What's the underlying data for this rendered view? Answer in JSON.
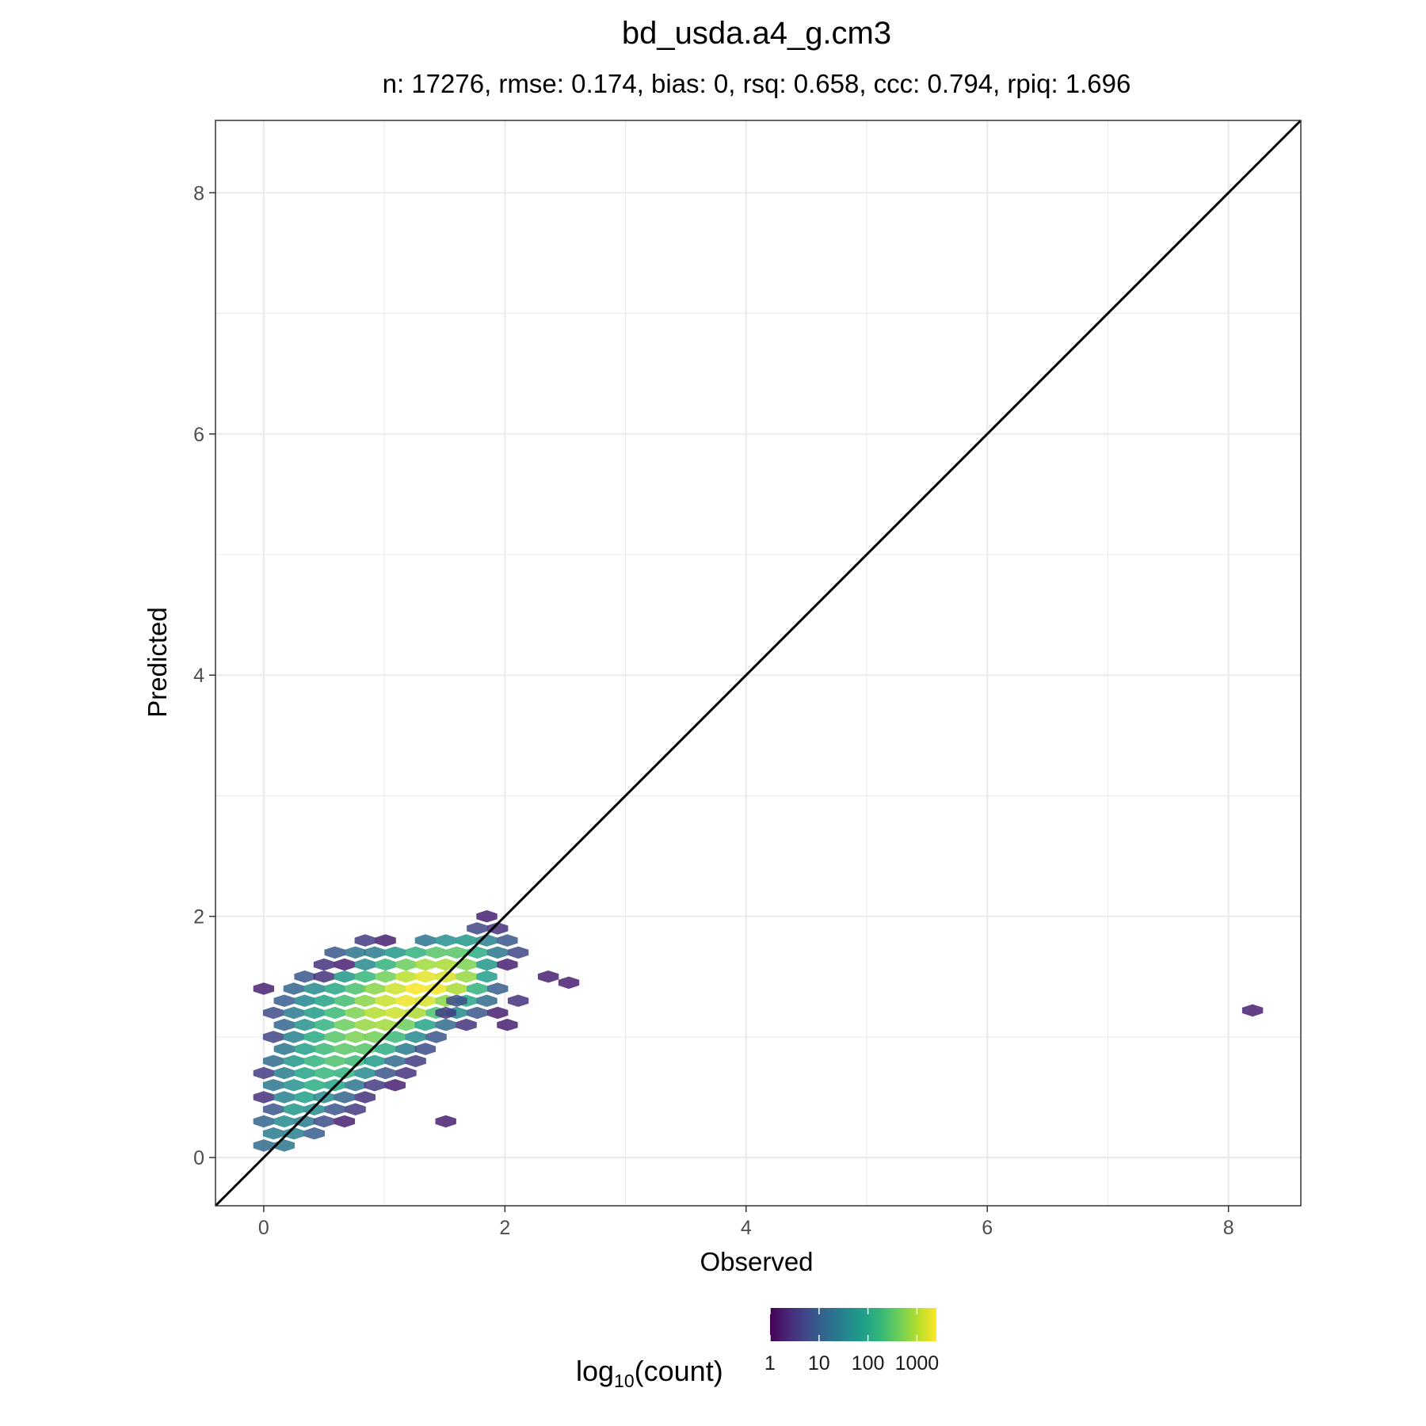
{
  "chart_data": {
    "type": "heatmap",
    "subtype": "hexbin",
    "title": "bd_usda.a4_g.cm3",
    "subtitle": "n: 17276, rmse: 0.174, bias: 0, rsq: 0.658, ccc: 0.794, rpiq: 1.696",
    "xlabel": "Observed",
    "ylabel": "Predicted",
    "xlim": [
      -0.4,
      8.6
    ],
    "ylim": [
      -0.4,
      8.6
    ],
    "x_ticks": [
      0,
      2,
      4,
      6,
      8
    ],
    "y_ticks": [
      0,
      2,
      4,
      6,
      8
    ],
    "grid": true,
    "reference_line": {
      "slope": 1,
      "intercept": 0,
      "color": "#000000"
    },
    "legend": {
      "title_base": "log",
      "title_sub": "10",
      "title_rest": "(count)",
      "placement": "bottom",
      "tick_values": [
        1,
        10,
        100,
        1000
      ],
      "tick_labels": [
        "1",
        "10",
        "100",
        "1000"
      ],
      "max_count": 2500,
      "palette": [
        "#440154",
        "#482878",
        "#3e4a89",
        "#31688e",
        "#26828e",
        "#1f9e89",
        "#35b779",
        "#6ece58",
        "#b5de2b",
        "#fde725"
      ]
    },
    "bins": [
      {
        "x": 0.0,
        "y": 0.1,
        "count": 15
      },
      {
        "x": 0.17,
        "y": 0.1,
        "count": 20
      },
      {
        "x": 0.08,
        "y": 0.2,
        "count": 25
      },
      {
        "x": 0.25,
        "y": 0.2,
        "count": 30
      },
      {
        "x": 0.42,
        "y": 0.2,
        "count": 10
      },
      {
        "x": 0.0,
        "y": 0.3,
        "count": 12
      },
      {
        "x": 0.17,
        "y": 0.3,
        "count": 40
      },
      {
        "x": 0.34,
        "y": 0.3,
        "count": 25
      },
      {
        "x": 0.5,
        "y": 0.3,
        "count": 6
      },
      {
        "x": 0.67,
        "y": 0.3,
        "count": 2
      },
      {
        "x": 0.08,
        "y": 0.4,
        "count": 8
      },
      {
        "x": 0.25,
        "y": 0.4,
        "count": 60
      },
      {
        "x": 0.42,
        "y": 0.4,
        "count": 40
      },
      {
        "x": 0.59,
        "y": 0.4,
        "count": 8
      },
      {
        "x": 0.76,
        "y": 0.4,
        "count": 4
      },
      {
        "x": 0.0,
        "y": 0.5,
        "count": 3
      },
      {
        "x": 0.17,
        "y": 0.5,
        "count": 30
      },
      {
        "x": 0.34,
        "y": 0.5,
        "count": 80
      },
      {
        "x": 0.5,
        "y": 0.5,
        "count": 40
      },
      {
        "x": 0.67,
        "y": 0.5,
        "count": 12
      },
      {
        "x": 0.84,
        "y": 0.5,
        "count": 3
      },
      {
        "x": 0.08,
        "y": 0.6,
        "count": 20
      },
      {
        "x": 0.25,
        "y": 0.6,
        "count": 50
      },
      {
        "x": 0.42,
        "y": 0.6,
        "count": 120
      },
      {
        "x": 0.59,
        "y": 0.6,
        "count": 90
      },
      {
        "x": 0.76,
        "y": 0.6,
        "count": 20
      },
      {
        "x": 0.92,
        "y": 0.6,
        "count": 4
      },
      {
        "x": 1.09,
        "y": 0.6,
        "count": 2
      },
      {
        "x": 0.0,
        "y": 0.7,
        "count": 4
      },
      {
        "x": 0.17,
        "y": 0.7,
        "count": 25
      },
      {
        "x": 0.34,
        "y": 0.7,
        "count": 90
      },
      {
        "x": 0.5,
        "y": 0.7,
        "count": 180
      },
      {
        "x": 0.67,
        "y": 0.7,
        "count": 150
      },
      {
        "x": 0.84,
        "y": 0.7,
        "count": 40
      },
      {
        "x": 1.01,
        "y": 0.7,
        "count": 8
      },
      {
        "x": 1.18,
        "y": 0.7,
        "count": 3
      },
      {
        "x": 0.08,
        "y": 0.8,
        "count": 15
      },
      {
        "x": 0.25,
        "y": 0.8,
        "count": 60
      },
      {
        "x": 0.42,
        "y": 0.8,
        "count": 160
      },
      {
        "x": 0.59,
        "y": 0.8,
        "count": 260
      },
      {
        "x": 0.76,
        "y": 0.8,
        "count": 200
      },
      {
        "x": 0.92,
        "y": 0.8,
        "count": 70
      },
      {
        "x": 1.09,
        "y": 0.8,
        "count": 15
      },
      {
        "x": 1.26,
        "y": 0.8,
        "count": 4
      },
      {
        "x": 0.17,
        "y": 0.9,
        "count": 20
      },
      {
        "x": 0.34,
        "y": 0.9,
        "count": 80
      },
      {
        "x": 0.5,
        "y": 0.9,
        "count": 200
      },
      {
        "x": 0.67,
        "y": 0.9,
        "count": 320
      },
      {
        "x": 0.84,
        "y": 0.9,
        "count": 300
      },
      {
        "x": 1.01,
        "y": 0.9,
        "count": 120
      },
      {
        "x": 1.18,
        "y": 0.9,
        "count": 25
      },
      {
        "x": 1.34,
        "y": 0.9,
        "count": 6
      },
      {
        "x": 0.08,
        "y": 1.0,
        "count": 5
      },
      {
        "x": 0.25,
        "y": 1.0,
        "count": 30
      },
      {
        "x": 0.42,
        "y": 1.0,
        "count": 110
      },
      {
        "x": 0.59,
        "y": 1.0,
        "count": 300
      },
      {
        "x": 0.76,
        "y": 1.0,
        "count": 500
      },
      {
        "x": 0.92,
        "y": 1.0,
        "count": 450
      },
      {
        "x": 1.09,
        "y": 1.0,
        "count": 200
      },
      {
        "x": 1.26,
        "y": 1.0,
        "count": 40
      },
      {
        "x": 1.43,
        "y": 1.0,
        "count": 8
      },
      {
        "x": 0.17,
        "y": 1.1,
        "count": 12
      },
      {
        "x": 0.34,
        "y": 1.1,
        "count": 50
      },
      {
        "x": 0.5,
        "y": 1.1,
        "count": 160
      },
      {
        "x": 0.67,
        "y": 1.1,
        "count": 400
      },
      {
        "x": 0.84,
        "y": 1.1,
        "count": 700
      },
      {
        "x": 1.01,
        "y": 1.1,
        "count": 800
      },
      {
        "x": 1.18,
        "y": 1.1,
        "count": 400
      },
      {
        "x": 1.34,
        "y": 1.1,
        "count": 90
      },
      {
        "x": 1.51,
        "y": 1.1,
        "count": 15
      },
      {
        "x": 1.68,
        "y": 1.1,
        "count": 3
      },
      {
        "x": 0.08,
        "y": 1.2,
        "count": 6
      },
      {
        "x": 0.25,
        "y": 1.2,
        "count": 25
      },
      {
        "x": 0.42,
        "y": 1.2,
        "count": 70
      },
      {
        "x": 0.59,
        "y": 1.2,
        "count": 200
      },
      {
        "x": 0.76,
        "y": 1.2,
        "count": 500
      },
      {
        "x": 0.92,
        "y": 1.2,
        "count": 1000
      },
      {
        "x": 1.09,
        "y": 1.2,
        "count": 1400
      },
      {
        "x": 1.26,
        "y": 1.2,
        "count": 900
      },
      {
        "x": 1.43,
        "y": 1.2,
        "count": 250
      },
      {
        "x": 1.6,
        "y": 1.2,
        "count": 40
      },
      {
        "x": 1.77,
        "y": 1.2,
        "count": 8
      },
      {
        "x": 1.94,
        "y": 1.2,
        "count": 2
      },
      {
        "x": 0.17,
        "y": 1.3,
        "count": 10
      },
      {
        "x": 0.34,
        "y": 1.3,
        "count": 35
      },
      {
        "x": 0.5,
        "y": 1.3,
        "count": 90
      },
      {
        "x": 0.67,
        "y": 1.3,
        "count": 220
      },
      {
        "x": 0.84,
        "y": 1.3,
        "count": 600
      },
      {
        "x": 1.01,
        "y": 1.3,
        "count": 1300
      },
      {
        "x": 1.18,
        "y": 1.3,
        "count": 2000
      },
      {
        "x": 1.34,
        "y": 1.3,
        "count": 1500
      },
      {
        "x": 1.51,
        "y": 1.3,
        "count": 600
      },
      {
        "x": 1.68,
        "y": 1.3,
        "count": 100
      },
      {
        "x": 1.85,
        "y": 1.3,
        "count": 15
      },
      {
        "x": 0.0,
        "y": 1.4,
        "count": 2
      },
      {
        "x": 0.25,
        "y": 1.4,
        "count": 12
      },
      {
        "x": 0.42,
        "y": 1.4,
        "count": 40
      },
      {
        "x": 0.59,
        "y": 1.4,
        "count": 100
      },
      {
        "x": 0.76,
        "y": 1.4,
        "count": 250
      },
      {
        "x": 0.92,
        "y": 1.4,
        "count": 600
      },
      {
        "x": 1.09,
        "y": 1.4,
        "count": 1400
      },
      {
        "x": 1.26,
        "y": 1.4,
        "count": 2300
      },
      {
        "x": 1.43,
        "y": 1.4,
        "count": 2100
      },
      {
        "x": 1.6,
        "y": 1.4,
        "count": 900
      },
      {
        "x": 1.77,
        "y": 1.4,
        "count": 150
      },
      {
        "x": 1.94,
        "y": 1.4,
        "count": 10
      },
      {
        "x": 0.34,
        "y": 1.5,
        "count": 8
      },
      {
        "x": 0.5,
        "y": 1.5,
        "count": 3
      },
      {
        "x": 0.67,
        "y": 1.5,
        "count": 60
      },
      {
        "x": 0.84,
        "y": 1.5,
        "count": 180
      },
      {
        "x": 1.01,
        "y": 1.5,
        "count": 450
      },
      {
        "x": 1.18,
        "y": 1.5,
        "count": 1100
      },
      {
        "x": 1.34,
        "y": 1.5,
        "count": 1800
      },
      {
        "x": 1.51,
        "y": 1.5,
        "count": 1500
      },
      {
        "x": 1.68,
        "y": 1.5,
        "count": 700
      },
      {
        "x": 1.85,
        "y": 1.5,
        "count": 80
      },
      {
        "x": 0.5,
        "y": 1.6,
        "count": 3
      },
      {
        "x": 0.67,
        "y": 1.6,
        "count": 2
      },
      {
        "x": 0.84,
        "y": 1.6,
        "count": 40
      },
      {
        "x": 1.01,
        "y": 1.6,
        "count": 150
      },
      {
        "x": 1.18,
        "y": 1.6,
        "count": 400
      },
      {
        "x": 1.34,
        "y": 1.6,
        "count": 800
      },
      {
        "x": 1.51,
        "y": 1.6,
        "count": 900
      },
      {
        "x": 1.68,
        "y": 1.6,
        "count": 500
      },
      {
        "x": 1.85,
        "y": 1.6,
        "count": 60
      },
      {
        "x": 2.02,
        "y": 1.6,
        "count": 2
      },
      {
        "x": 0.59,
        "y": 1.7,
        "count": 8
      },
      {
        "x": 0.76,
        "y": 1.7,
        "count": 20
      },
      {
        "x": 0.92,
        "y": 1.7,
        "count": 25
      },
      {
        "x": 1.09,
        "y": 1.7,
        "count": 60
      },
      {
        "x": 1.26,
        "y": 1.7,
        "count": 150
      },
      {
        "x": 1.43,
        "y": 1.7,
        "count": 300
      },
      {
        "x": 1.6,
        "y": 1.7,
        "count": 300
      },
      {
        "x": 1.77,
        "y": 1.7,
        "count": 120
      },
      {
        "x": 1.94,
        "y": 1.7,
        "count": 20
      },
      {
        "x": 2.11,
        "y": 1.7,
        "count": 5
      },
      {
        "x": 0.84,
        "y": 1.8,
        "count": 4
      },
      {
        "x": 1.01,
        "y": 1.8,
        "count": 2
      },
      {
        "x": 1.34,
        "y": 1.8,
        "count": 20
      },
      {
        "x": 1.51,
        "y": 1.8,
        "count": 50
      },
      {
        "x": 1.68,
        "y": 1.8,
        "count": 60
      },
      {
        "x": 1.85,
        "y": 1.8,
        "count": 30
      },
      {
        "x": 2.02,
        "y": 1.8,
        "count": 8
      },
      {
        "x": 1.77,
        "y": 1.9,
        "count": 5
      },
      {
        "x": 1.94,
        "y": 1.9,
        "count": 3
      },
      {
        "x": 1.85,
        "y": 2.0,
        "count": 2
      },
      {
        "x": 1.51,
        "y": 1.2,
        "count": 4
      },
      {
        "x": 1.6,
        "y": 1.3,
        "count": 6
      },
      {
        "x": 2.02,
        "y": 1.1,
        "count": 2
      },
      {
        "x": 2.11,
        "y": 1.3,
        "count": 3
      },
      {
        "x": 2.36,
        "y": 1.5,
        "count": 2
      },
      {
        "x": 2.53,
        "y": 1.45,
        "count": 2
      },
      {
        "x": 1.51,
        "y": 0.3,
        "count": 2
      },
      {
        "x": 8.2,
        "y": 1.22,
        "count": 2
      }
    ]
  }
}
